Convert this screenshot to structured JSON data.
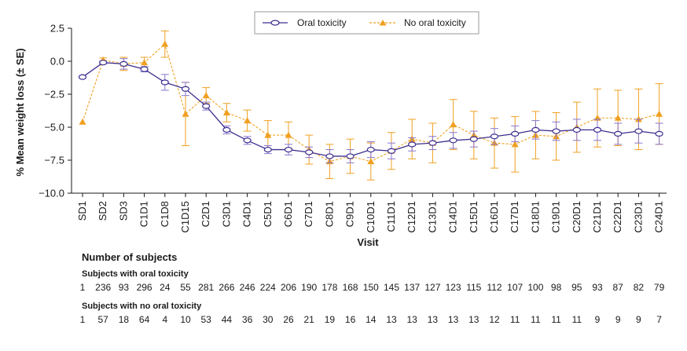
{
  "chart_data": {
    "type": "line",
    "xlabel": "Visit",
    "ylabel": "% Mean weight loss (± SE)",
    "ylim": [
      -10.0,
      2.5
    ],
    "yticks": [
      "2.5",
      "0.0",
      "−2.5",
      "−5.0",
      "−7.5",
      "−10.0"
    ],
    "ytick_values": [
      2.5,
      0.0,
      -2.5,
      -5.0,
      -7.5,
      -10.0
    ],
    "grid": false,
    "legend_position": "top-right",
    "categories": [
      "SD1",
      "SD2",
      "SD3",
      "C1D1",
      "C1D8",
      "C1D15",
      "C2D1",
      "C3D1",
      "C4D1",
      "C5D1",
      "C6D1",
      "C7D1",
      "C8D1",
      "C9D1",
      "C10D1",
      "C11D1",
      "C12D1",
      "C13D1",
      "C14D1",
      "C15D1",
      "C16D1",
      "C17D1",
      "C18D1",
      "C19D1",
      "C20D1",
      "C21D1",
      "C22D1",
      "C23D1",
      "C24D1"
    ],
    "series": [
      {
        "name": "Oral toxicity",
        "color": "#3c2d8f",
        "errcolor": "#8a75cc",
        "style": "solid",
        "marker": "circle",
        "values": [
          -1.2,
          -0.1,
          -0.2,
          -0.6,
          -1.6,
          -2.1,
          -3.4,
          -5.2,
          -6.0,
          -6.7,
          -6.7,
          -6.9,
          -7.2,
          -7.2,
          -6.7,
          -6.8,
          -6.3,
          -6.2,
          -6.0,
          -5.9,
          -5.7,
          -5.5,
          -5.2,
          -5.3,
          -5.2,
          -5.2,
          -5.5,
          -5.3,
          -5.5
        ],
        "se": [
          0.05,
          0.1,
          0.4,
          0.2,
          0.6,
          0.5,
          0.3,
          0.3,
          0.3,
          0.3,
          0.4,
          0.4,
          0.5,
          0.5,
          0.6,
          0.6,
          0.5,
          0.5,
          0.6,
          0.6,
          0.6,
          0.6,
          0.7,
          0.7,
          0.8,
          0.8,
          0.8,
          0.9,
          0.8
        ]
      },
      {
        "name": "No oral toxicity",
        "color": "#f0a020",
        "errcolor": "#f0a020",
        "style": "dashed",
        "marker": "triangle",
        "values": [
          -4.6,
          0.1,
          -0.2,
          -0.1,
          1.3,
          -4.0,
          -2.6,
          -3.9,
          -4.5,
          -5.6,
          -5.6,
          -6.7,
          -7.6,
          -7.2,
          -7.6,
          -6.8,
          -5.9,
          -6.2,
          -4.8,
          -5.6,
          -6.2,
          -6.3,
          -5.6,
          -5.7,
          -5.0,
          -4.3,
          -4.3,
          -4.4,
          -4.0
        ],
        "se": [
          0.0,
          0.15,
          0.5,
          0.4,
          1.0,
          2.4,
          0.6,
          0.7,
          0.8,
          1.1,
          1.0,
          1.1,
          1.3,
          1.3,
          1.4,
          1.4,
          1.5,
          1.5,
          1.9,
          1.8,
          1.9,
          2.1,
          1.8,
          1.8,
          1.9,
          2.2,
          2.1,
          2.3,
          2.3
        ]
      }
    ]
  },
  "subjects": {
    "title": "Number of subjects",
    "oral_label": "Subjects with oral toxicity",
    "oral_counts": [
      "1",
      "236",
      "93",
      "296",
      "24",
      "55",
      "281",
      "266",
      "246",
      "224",
      "206",
      "190",
      "178",
      "168",
      "150",
      "145",
      "137",
      "127",
      "123",
      "115",
      "112",
      "107",
      "100",
      "98",
      "95",
      "93",
      "87",
      "82",
      "79"
    ],
    "no_oral_label": "Subjects with no oral toxicity",
    "no_oral_counts": [
      "1",
      "57",
      "18",
      "64",
      "4",
      "10",
      "53",
      "44",
      "36",
      "30",
      "26",
      "21",
      "19",
      "16",
      "14",
      "13",
      "13",
      "13",
      "13",
      "13",
      "12",
      "11",
      "11",
      "11",
      "11",
      "9",
      "9",
      "9",
      "7"
    ]
  }
}
